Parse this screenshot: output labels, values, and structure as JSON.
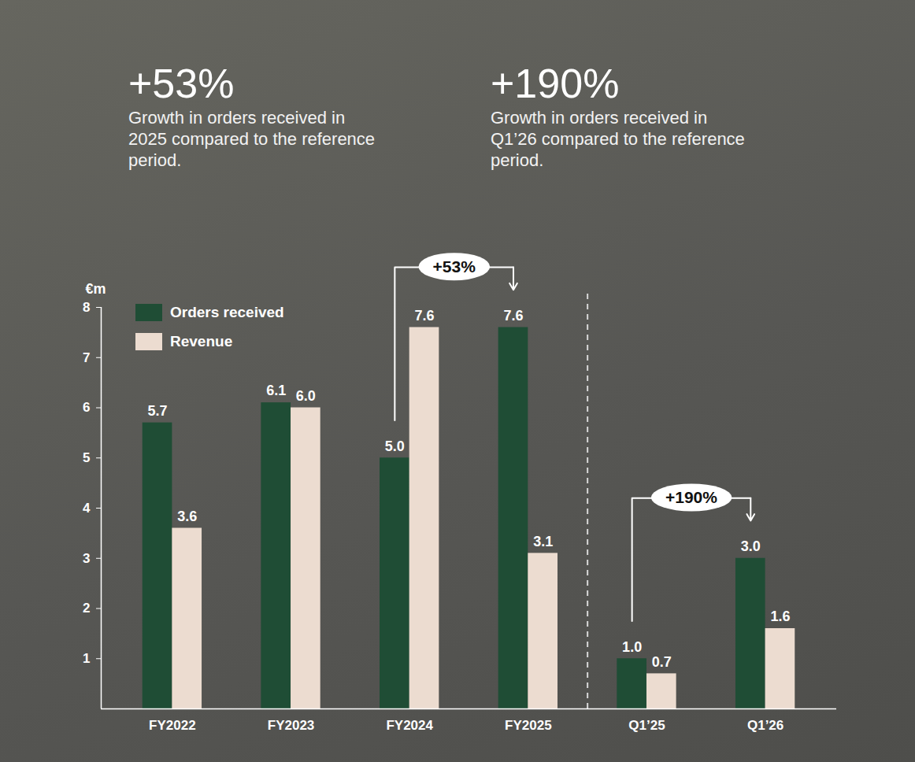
{
  "chart_data": {
    "type": "bar",
    "highlights": [
      {
        "value": "+53%",
        "text": "Growth in orders received in 2025 compared to the reference period."
      },
      {
        "value": "+190%",
        "text": "Growth in orders received in Q1’26 compared to the reference period."
      }
    ],
    "y_label": "€m",
    "categories": [
      "FY2022",
      "FY2023",
      "FY2024",
      "FY2025",
      "Q1’25",
      "Q1’26"
    ],
    "series": [
      {
        "name": "Orders received",
        "color": "#1f4d35",
        "values": [
          5.7,
          6.1,
          5.0,
          7.6,
          1.0,
          3.0
        ],
        "value_labels": [
          "5.7",
          "6.1",
          "5.0",
          "7.6",
          "1.0",
          "3.0"
        ]
      },
      {
        "name": "Revenue",
        "color": "#ecdcd0",
        "values": [
          3.6,
          6.0,
          7.6,
          3.1,
          0.7,
          1.6
        ],
        "value_labels": [
          "3.6",
          "6.0",
          "7.6",
          "3.1",
          "0.7",
          "1.6"
        ]
      }
    ],
    "annotations": [
      {
        "label": "+53%",
        "from": "FY2024",
        "to": "FY2025"
      },
      {
        "label": "+190%",
        "from": "Q1’25",
        "to": "Q1’26"
      }
    ],
    "ylim": [
      0,
      8
    ],
    "yticks": [
      1,
      2,
      3,
      4,
      5,
      6,
      7,
      8
    ],
    "grid": false,
    "legend": "top-left",
    "data_labels": true
  }
}
